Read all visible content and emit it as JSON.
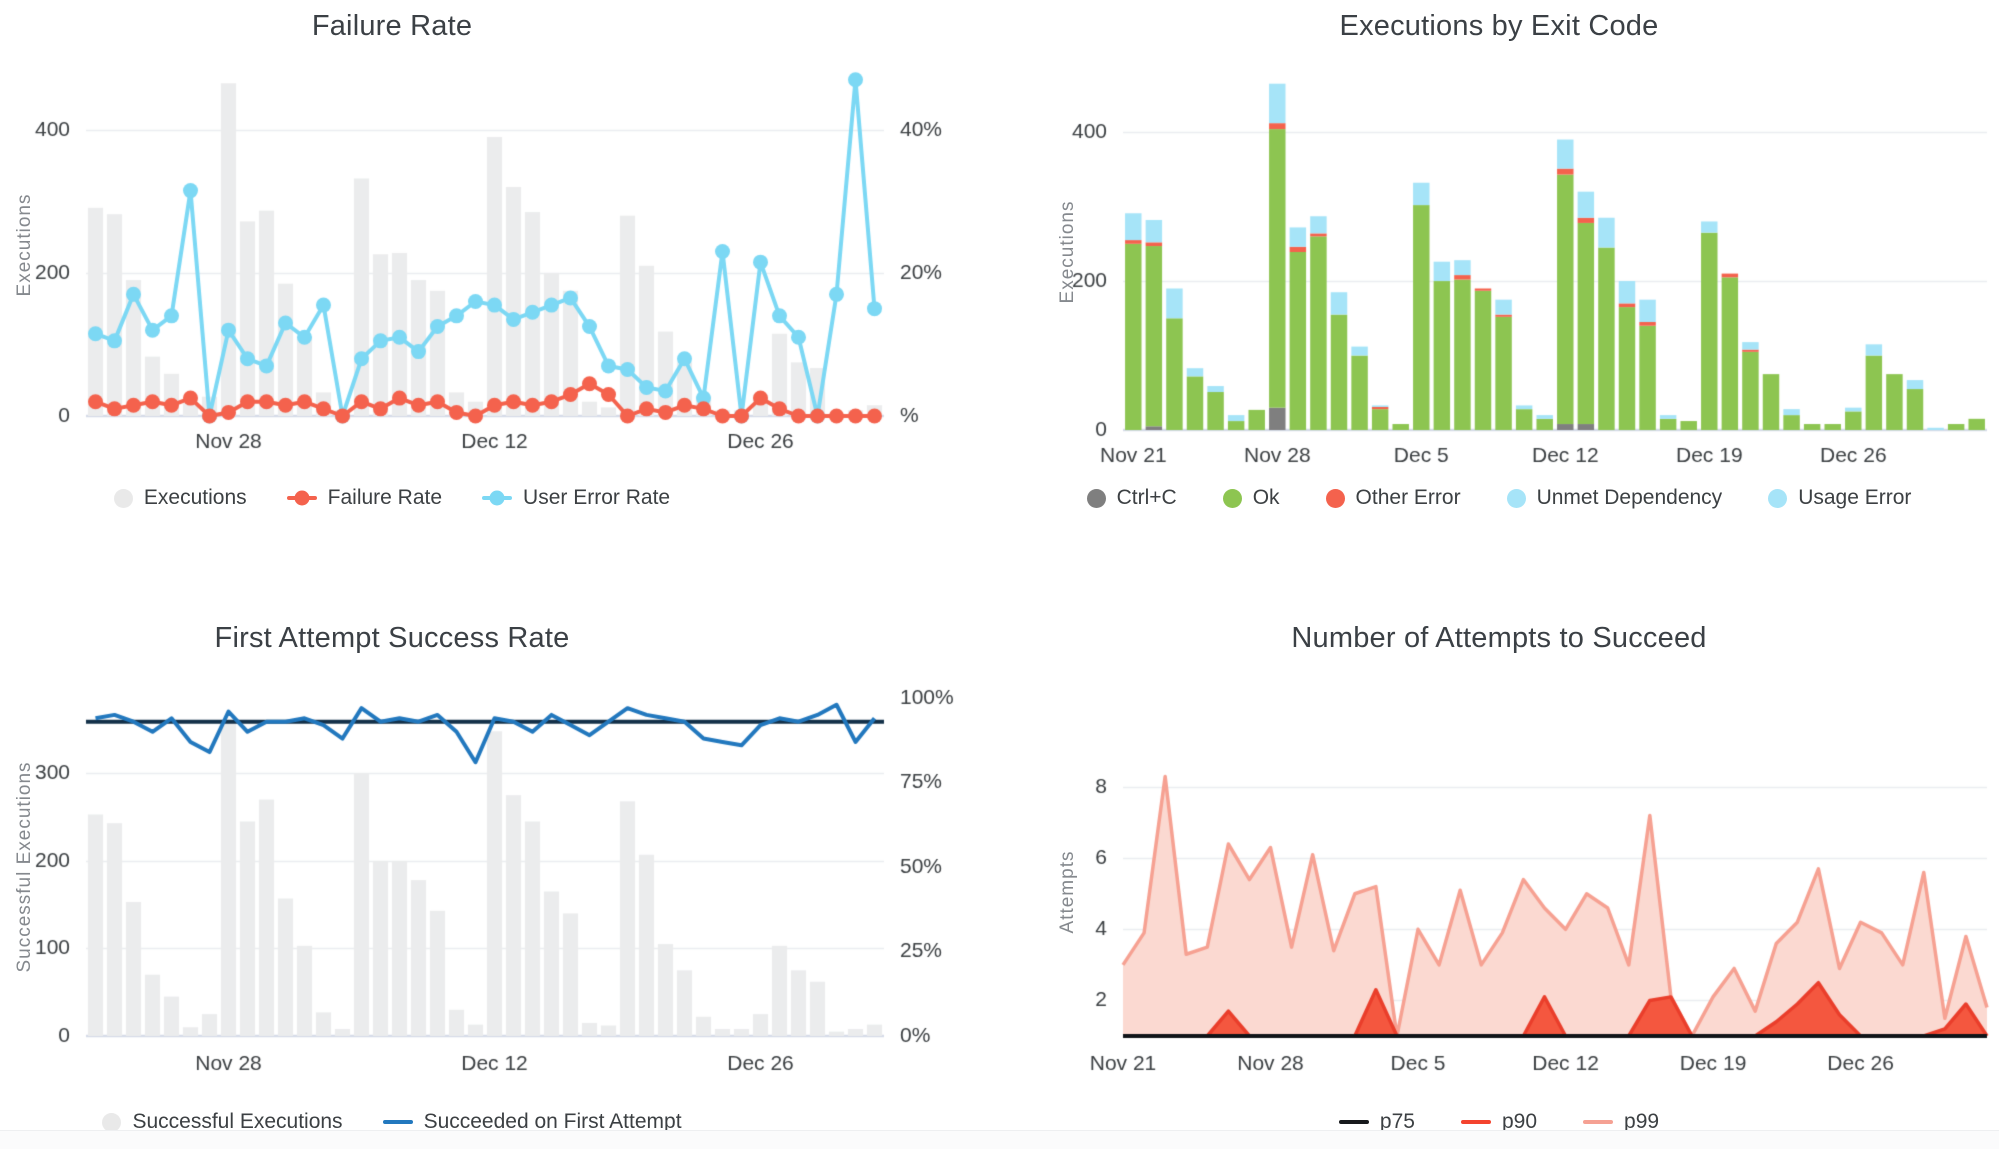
{
  "page": {
    "background": "#ffffff"
  },
  "chart_data": [
    {
      "id": "failure-rate",
      "type": "combo",
      "title": "Failure Rate",
      "ylabel": "Executions",
      "xlabel": "",
      "grid": true,
      "axes": {
        "left": {
          "max": 478,
          "ticks": [
            {
              "v": 0,
              "label": "0"
            },
            {
              "v": 200,
              "label": "200"
            },
            {
              "v": 400,
              "label": "400"
            }
          ]
        },
        "right": {
          "max": 47.8,
          "ticks": [
            {
              "v": 0,
              "label": "%"
            },
            {
              "v": 20,
              "label": "20%"
            },
            {
              "v": 40,
              "label": "40%"
            }
          ]
        }
      },
      "x_ticks": [
        {
          "day": 7,
          "label": "Nov 28"
        },
        {
          "day": 21,
          "label": "Dec 12"
        },
        {
          "day": 35,
          "label": "Dec 26"
        }
      ],
      "series": [
        {
          "name": "Executions",
          "kind": "bar",
          "axis": "left",
          "color": "#EBECED",
          "values": [
            291,
            282,
            190,
            83,
            59,
            20,
            27,
            465,
            272,
            287,
            185,
            112,
            33,
            8,
            332,
            226,
            228,
            190,
            175,
            33,
            20,
            390,
            320,
            285,
            200,
            175,
            20,
            12,
            280,
            210,
            118,
            75,
            28,
            8,
            8,
            30,
            115,
            75,
            67,
            3,
            8,
            15
          ]
        },
        {
          "name": "User Error Rate",
          "kind": "line",
          "markers": true,
          "axis": "right",
          "color": "#7CD8F4",
          "values": [
            11.5,
            10.5,
            17,
            12,
            14,
            31.5,
            0,
            12,
            8,
            7,
            13,
            11,
            15.5,
            0,
            8,
            10.5,
            11,
            9,
            12.5,
            14,
            16,
            15.5,
            13.5,
            14.5,
            15.5,
            16.5,
            12.5,
            7,
            6.5,
            4,
            3.5,
            8,
            2.5,
            23,
            0,
            21.5,
            14,
            11,
            0,
            17,
            47,
            15
          ]
        },
        {
          "name": "Failure Rate",
          "kind": "line",
          "markers": true,
          "axis": "right",
          "color": "#F4624D",
          "values": [
            2,
            1,
            1.5,
            2,
            1.5,
            2.5,
            0,
            0.5,
            2,
            2,
            1.5,
            2,
            1,
            0,
            2,
            1,
            2.5,
            1.5,
            2,
            0.5,
            0,
            1.5,
            2,
            1.5,
            2,
            3,
            4.5,
            3,
            0,
            1,
            0.5,
            1.5,
            1,
            0,
            0,
            2.5,
            1,
            0,
            0,
            0,
            0,
            0
          ]
        }
      ],
      "legend": [
        {
          "label": "Executions",
          "marker": "dot",
          "color": "#E9E9E9"
        },
        {
          "label": "Failure Rate",
          "marker": "line-dot",
          "color": "#F4624D"
        },
        {
          "label": "User Error Rate",
          "marker": "line-dot",
          "color": "#7CD8F4"
        }
      ]
    },
    {
      "id": "executions-by-exit-code",
      "type": "bar",
      "stacked": true,
      "title": "Executions by Exit Code",
      "ylabel": "Executions",
      "xlabel": "",
      "grid": true,
      "axes": {
        "left": {
          "max": 478,
          "ticks": [
            {
              "v": 0,
              "label": "0"
            },
            {
              "v": 200,
              "label": "200"
            },
            {
              "v": 400,
              "label": "400"
            }
          ]
        }
      },
      "x_ticks": [
        {
          "day": 0,
          "label": "Nov 21"
        },
        {
          "day": 7,
          "label": "Nov 28"
        },
        {
          "day": 14,
          "label": "Dec 5"
        },
        {
          "day": 21,
          "label": "Dec 12"
        },
        {
          "day": 28,
          "label": "Dec 19"
        },
        {
          "day": 35,
          "label": "Dec 26"
        }
      ],
      "series": [
        {
          "name": "Ctrl+C",
          "kind": "stack",
          "color": "#7F7F7F",
          "values": [
            0,
            5,
            0,
            0,
            0,
            0,
            0,
            30,
            0,
            0,
            0,
            0,
            0,
            0,
            0,
            0,
            0,
            0,
            0,
            0,
            0,
            8,
            8,
            0,
            0,
            0,
            0,
            0,
            0,
            0,
            0,
            0,
            0,
            0,
            0,
            0,
            0,
            0,
            0,
            0,
            0,
            0
          ]
        },
        {
          "name": "Ok",
          "kind": "stack",
          "color": "#8DC551",
          "values": [
            250,
            242,
            150,
            72,
            51,
            12,
            27,
            374,
            239,
            260,
            155,
            100,
            28,
            8,
            302,
            200,
            202,
            187,
            152,
            28,
            15,
            335,
            270,
            245,
            165,
            140,
            15,
            12,
            265,
            205,
            105,
            75,
            20,
            8,
            8,
            25,
            100,
            75,
            55,
            0,
            8,
            15
          ]
        },
        {
          "name": "Other Error",
          "kind": "stack",
          "color": "#F4624D",
          "values": [
            5,
            5,
            0,
            0,
            0,
            0,
            0,
            8,
            7,
            4,
            0,
            0,
            3,
            0,
            0,
            0,
            6,
            3,
            3,
            0,
            0,
            8,
            7,
            0,
            5,
            5,
            0,
            0,
            0,
            5,
            3,
            0,
            0,
            0,
            0,
            0,
            0,
            0,
            0,
            0,
            0,
            0
          ]
        },
        {
          "name": "Unmet Dependency",
          "kind": "stack",
          "color": "#A6E4F8",
          "values": [
            0,
            0,
            0,
            0,
            0,
            0,
            0,
            0,
            0,
            0,
            0,
            0,
            0,
            0,
            0,
            0,
            0,
            0,
            0,
            0,
            0,
            0,
            0,
            0,
            0,
            0,
            0,
            0,
            0,
            0,
            0,
            0,
            0,
            0,
            0,
            0,
            0,
            0,
            0,
            0,
            0,
            0
          ]
        },
        {
          "name": "Usage Error",
          "kind": "stack",
          "color": "#A6E4F8",
          "values": [
            36,
            30,
            40,
            11,
            8,
            8,
            0,
            53,
            26,
            23,
            30,
            12,
            2,
            0,
            30,
            26,
            20,
            0,
            20,
            5,
            5,
            39,
            35,
            40,
            30,
            30,
            5,
            0,
            15,
            0,
            10,
            0,
            8,
            0,
            0,
            5,
            15,
            0,
            12,
            3,
            0,
            0
          ]
        }
      ],
      "legend": [
        {
          "label": "Ctrl+C",
          "marker": "dot",
          "color": "#7F7F7F"
        },
        {
          "label": "Ok",
          "marker": "dot",
          "color": "#8DC551"
        },
        {
          "label": "Other Error",
          "marker": "dot",
          "color": "#F4624D"
        },
        {
          "label": "Unmet Dependency",
          "marker": "dot",
          "color": "#A6E4F8"
        },
        {
          "label": "Usage Error",
          "marker": "dot",
          "color": "#A6E4F8"
        }
      ]
    },
    {
      "id": "first-attempt-success-rate",
      "type": "combo",
      "title": "First Attempt Success Rate",
      "ylabel": "Successful Executions",
      "xlabel": "",
      "grid": true,
      "axes": {
        "left": {
          "max": 386,
          "ticks": [
            {
              "v": 0,
              "label": "0"
            },
            {
              "v": 100,
              "label": "100"
            },
            {
              "v": 200,
              "label": "200"
            },
            {
              "v": 300,
              "label": "300"
            }
          ]
        },
        "right": {
          "max": 100,
          "ticks": [
            {
              "v": 0,
              "label": "0%"
            },
            {
              "v": 25,
              "label": "25%"
            },
            {
              "v": 50,
              "label": "50%"
            },
            {
              "v": 75,
              "label": "75%"
            },
            {
              "v": 100,
              "label": "100%"
            }
          ]
        }
      },
      "x_ticks": [
        {
          "day": 7,
          "label": "Nov 28"
        },
        {
          "day": 21,
          "label": "Dec 12"
        },
        {
          "day": 35,
          "label": "Dec 26"
        }
      ],
      "series": [
        {
          "name": "Successful Executions",
          "kind": "bar",
          "axis": "left",
          "color": "#EBECED",
          "values": [
            253,
            243,
            153,
            70,
            45,
            10,
            25,
            360,
            245,
            270,
            157,
            103,
            27,
            8,
            300,
            200,
            200,
            178,
            143,
            30,
            13,
            348,
            275,
            245,
            165,
            140,
            15,
            12,
            268,
            207,
            105,
            75,
            22,
            8,
            8,
            25,
            103,
            75,
            62,
            5,
            8,
            13
          ]
        },
        {
          "name": "reference-line",
          "kind": "hline",
          "axis": "right",
          "color": "#133049",
          "value": 93
        },
        {
          "name": "Succeeded on First Attempt",
          "kind": "line",
          "markers": false,
          "axis": "right",
          "color": "#2278BE",
          "values": [
            94,
            95,
            93,
            90,
            94,
            87,
            84,
            96,
            90,
            93,
            93,
            94,
            92,
            88,
            97,
            93,
            94,
            93,
            95,
            90,
            81,
            94,
            93,
            90,
            95,
            92,
            89,
            93,
            97,
            95,
            94,
            93,
            88,
            87,
            86,
            92,
            94,
            93,
            95,
            98,
            87,
            94
          ]
        }
      ],
      "legend": [
        {
          "label": "Successful Executions",
          "marker": "dot",
          "color": "#E9E9E9"
        },
        {
          "label": "Succeeded on First Attempt",
          "marker": "line",
          "color": "#2278BE"
        }
      ]
    },
    {
      "id": "number-of-attempts-to-succeed",
      "type": "area",
      "title": "Number of Attempts to Succeed",
      "ylabel": "Attempts",
      "xlabel": "",
      "grid": true,
      "axes": {
        "left": {
          "min": 1,
          "max": 9.1,
          "ticks": [
            {
              "v": 2,
              "label": "2"
            },
            {
              "v": 4,
              "label": "4"
            },
            {
              "v": 6,
              "label": "6"
            },
            {
              "v": 8,
              "label": "8"
            }
          ]
        }
      },
      "x_ticks": [
        {
          "day": 0,
          "label": "Nov 21"
        },
        {
          "day": 7,
          "label": "Nov 28"
        },
        {
          "day": 14,
          "label": "Dec 5"
        },
        {
          "day": 21,
          "label": "Dec 12"
        },
        {
          "day": 28,
          "label": "Dec 19"
        },
        {
          "day": 35,
          "label": "Dec 26"
        }
      ],
      "series": [
        {
          "name": "p99",
          "kind": "area",
          "color": "#F6A192",
          "fill": "#FBD9D1",
          "width": 3.5,
          "values": [
            3,
            3.9,
            8.3,
            3.3,
            3.5,
            6.4,
            5.4,
            6.3,
            3.5,
            6.1,
            3.4,
            5,
            5.2,
            1,
            4,
            3,
            5.1,
            3,
            3.9,
            5.4,
            4.6,
            4,
            5,
            4.6,
            3,
            7.2,
            2.1,
            1,
            2.1,
            2.9,
            1.7,
            3.6,
            4.2,
            5.7,
            2.9,
            4.2,
            3.9,
            3,
            5.6,
            1.5,
            3.8,
            1.8
          ]
        },
        {
          "name": "p90",
          "kind": "area",
          "color": "#EA3E2B",
          "fill": "#F4573F",
          "width": 3.5,
          "values": [
            1,
            1,
            1,
            1,
            1,
            1.7,
            1,
            1,
            1,
            1,
            1,
            1,
            2.3,
            1,
            1,
            1,
            1,
            1,
            1,
            1,
            2.1,
            1,
            1,
            1,
            1,
            2,
            2.1,
            1,
            1,
            1,
            1,
            1.4,
            1.9,
            2.5,
            1.6,
            1,
            1,
            1,
            1,
            1.2,
            1.9,
            1
          ]
        },
        {
          "name": "p75",
          "kind": "area",
          "color": "#101418",
          "width": 4,
          "constant": 1
        }
      ],
      "legend": [
        {
          "label": "p75",
          "marker": "line",
          "color": "#17191C"
        },
        {
          "label": "p90",
          "marker": "line",
          "color": "#F4432E"
        },
        {
          "label": "p99",
          "marker": "line",
          "color": "#F5A193"
        }
      ]
    }
  ]
}
